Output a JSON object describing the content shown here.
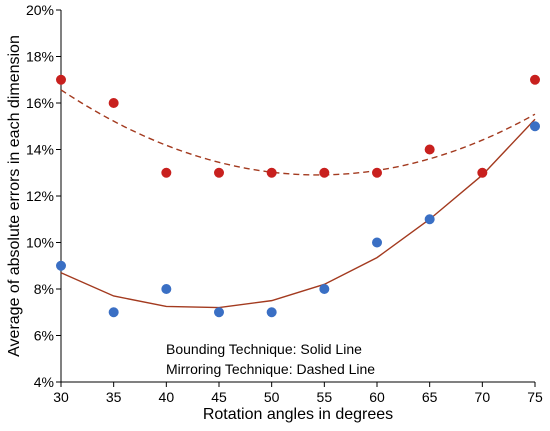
{
  "chart_data": {
    "type": "scatter",
    "xlabel": "Rotation angles in degrees",
    "ylabel": "Average of absolute errors in each dimension",
    "xlim": [
      30,
      75
    ],
    "ylim": [
      4,
      20
    ],
    "x_ticks": [
      "30",
      "35",
      "40",
      "45",
      "50",
      "55",
      "60",
      "65",
      "70",
      "75"
    ],
    "y_ticks": [
      "4%",
      "6%",
      "8%",
      "10%",
      "12%",
      "14%",
      "16%",
      "18%",
      "20%"
    ],
    "grid": false,
    "annotations": [
      "Bounding Technique: Solid Line",
      "Mirroring Technique: Dashed Line"
    ],
    "series": [
      {
        "color": "#c8201e",
        "marker": "circle",
        "points": [
          [
            30,
            17
          ],
          [
            35,
            16
          ],
          [
            40,
            13
          ],
          [
            45,
            13
          ],
          [
            50,
            13
          ],
          [
            55,
            13
          ],
          [
            60,
            13
          ],
          [
            65,
            14
          ],
          [
            70,
            13
          ],
          [
            75,
            17
          ]
        ],
        "trend": {
          "style": "dashed",
          "color": "#a33a1f",
          "coef": [
            31.1,
            -0.669,
            0.00615
          ]
        }
      },
      {
        "color": "#3a6fc4",
        "marker": "circle",
        "points": [
          [
            30,
            9
          ],
          [
            35,
            7
          ],
          [
            40,
            8
          ],
          [
            45,
            7
          ],
          [
            50,
            7
          ],
          [
            55,
            8
          ],
          [
            60,
            10
          ],
          [
            65,
            11
          ],
          [
            75,
            15
          ]
        ],
        "trend": {
          "style": "solid",
          "color": "#a33a1f",
          "points": [
            [
              30,
              8.7
            ],
            [
              35,
              7.7
            ],
            [
              40,
              7.25
            ],
            [
              45,
              7.2
            ],
            [
              50,
              7.5
            ],
            [
              55,
              8.2
            ],
            [
              60,
              9.35
            ],
            [
              65,
              11
            ],
            [
              70,
              12.9
            ],
            [
              75,
              15.3
            ]
          ]
        }
      }
    ]
  }
}
